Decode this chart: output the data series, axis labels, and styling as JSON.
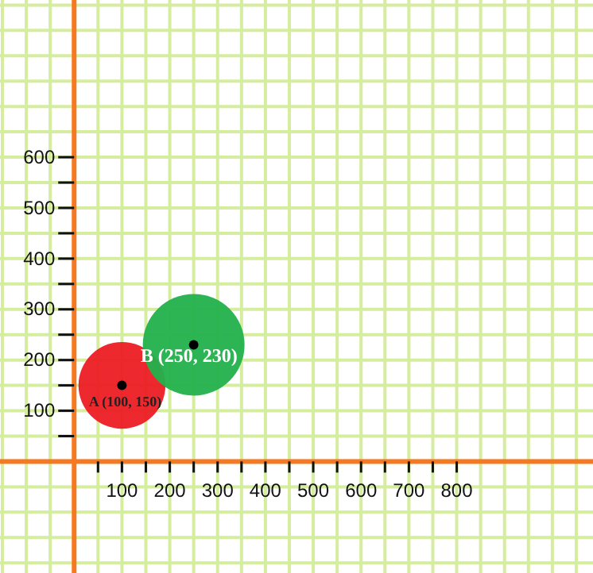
{
  "chart_data": {
    "type": "bubble",
    "x": [
      100,
      250
    ],
    "series": [
      {
        "color": "#ed1c24",
        "values": [
          150,
          null
        ],
        "sizes": [
          0.73,
          null
        ]
      },
      {
        "color": "#22b14c",
        "values": [
          null,
          230
        ],
        "sizes": [
          null,
          1
        ]
      },
      {
        "type": "scatter",
        "color": "#000000",
        "values": [
          150,
          230
        ]
      }
    ],
    "marker": "circle",
    "annotations": [
      {
        "text": "A (100, 150)",
        "x": 100,
        "y": 150
      },
      {
        "text": "B (250, 230)",
        "x": 250,
        "y": 230
      }
    ],
    "xlim": [
      -155,
      1085
    ],
    "ylim": [
      -220,
      910
    ],
    "xticks": [
      {
        "value": -150,
        "label": null
      },
      {
        "value": -100,
        "label": null
      },
      {
        "value": -50,
        "label": null
      },
      {
        "value": 0,
        "label": null
      },
      {
        "value": 50,
        "label": null
      },
      100,
      {
        "value": 150,
        "label": null
      },
      200,
      {
        "value": 250,
        "label": null
      },
      300,
      {
        "value": 350,
        "label": null
      },
      400,
      {
        "value": 450,
        "label": null
      },
      500,
      {
        "value": 550,
        "label": null
      },
      600,
      {
        "value": 650,
        "label": null
      },
      700,
      {
        "value": 750,
        "label": null
      },
      800,
      {
        "value": 850,
        "label": null
      },
      {
        "value": 900,
        "label": null
      },
      {
        "value": 950,
        "label": null
      },
      {
        "value": 1000,
        "label": null
      },
      {
        "value": 1050,
        "label": null
      }
    ],
    "yticks": [
      {
        "value": -200,
        "label": null
      },
      {
        "value": -150,
        "label": null
      },
      {
        "value": -100,
        "label": null
      },
      {
        "value": -50,
        "label": null
      },
      {
        "value": 0,
        "label": null
      },
      {
        "value": 50,
        "label": null
      },
      100,
      {
        "value": 150,
        "label": null
      },
      200,
      {
        "value": 250,
        "label": null
      },
      300,
      {
        "value": 350,
        "label": null
      },
      400,
      {
        "value": 450,
        "label": null
      },
      500,
      {
        "value": 550,
        "label": null
      },
      600,
      {
        "value": 650,
        "label": null
      },
      {
        "value": 700,
        "label": null
      },
      {
        "value": 750,
        "label": null
      },
      {
        "value": 800,
        "label": null
      },
      {
        "value": 850,
        "label": null
      },
      {
        "value": 900,
        "label": null
      }
    ],
    "grid": true
  }
}
